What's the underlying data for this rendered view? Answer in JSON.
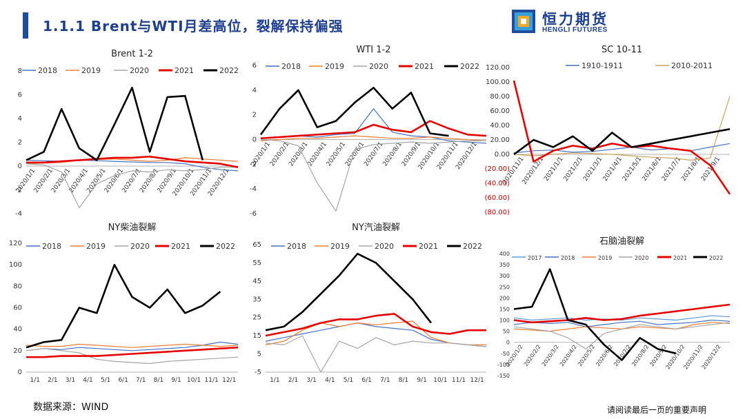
{
  "header": {
    "title": "1.1.1 Brent与WTI月差高位，裂解保持偏强",
    "logo_cn": "恒力期货",
    "logo_en": "HENGLI FUTURES"
  },
  "footer": {
    "source": "数据来源：WIND",
    "disclaimer": "请阅读最后一页的重要声明"
  },
  "colors": {
    "brand": "#1f4e9e",
    "y2017": "#5b9bd5",
    "y2018": "#4472c4",
    "y2019": "#ed7d31",
    "y2020": "#a5a5a5",
    "y2021": "#e60000",
    "y2022": "#000000"
  },
  "chart_data": [
    {
      "type": "line",
      "title": "Brent 1-2",
      "ylim": [
        -4,
        8
      ],
      "yticks": [
        "8",
        "6",
        "4",
        "2",
        "0",
        "-2",
        "-4"
      ],
      "xticks": [
        "2020/1/1",
        "2020/2/1",
        "2020/3/1",
        "2020/4/1",
        "2020/5/1",
        "2020/6/1",
        "2020/7/1",
        "2020/8/1",
        "2020/9/1",
        "2020/10/1",
        "2020/11/1",
        "2020/12/1"
      ],
      "legend": [
        "2018",
        "2019",
        "2020",
        "2021",
        "2022"
      ],
      "series": [
        {
          "name": "2018",
          "values": [
            0.5,
            0.45,
            0.4,
            0.5,
            0.45,
            0.4,
            0.35,
            0.3,
            0.3,
            0.2,
            -0.1,
            -0.3,
            -0.4
          ]
        },
        {
          "name": "2019",
          "values": [
            0.2,
            0.25,
            0.3,
            0.5,
            0.55,
            0.6,
            0.5,
            0.4,
            0.5,
            0.7,
            0.6,
            0.5,
            0.4
          ]
        },
        {
          "name": "2020",
          "values": [
            0.2,
            0.1,
            -0.5,
            -3.5,
            -1.5,
            -0.8,
            -0.4,
            -0.5,
            -0.3,
            -0.4,
            -0.3,
            -0.1,
            -0.1
          ]
        },
        {
          "name": "2021",
          "values": [
            0.3,
            0.3,
            0.4,
            0.5,
            0.6,
            0.7,
            0.7,
            0.8,
            0.6,
            0.4,
            0.3,
            0.2,
            -0.1
          ]
        },
        {
          "name": "2022",
          "values": [
            0.5,
            1.2,
            4.8,
            1.5,
            0.5,
            3.5,
            6.6,
            1.2,
            5.8,
            5.9,
            0.5
          ]
        }
      ]
    },
    {
      "type": "line",
      "title": "WTI 1-2",
      "ylim": [
        -6,
        6
      ],
      "yticks": [
        "6",
        "4",
        "2",
        "0",
        "-2",
        "-4",
        "-6"
      ],
      "xticks": [
        "2020/1/1",
        "2020/2/1",
        "2020/3/1",
        "2020/4/1",
        "2020/5/1",
        "2020/6/1",
        "2020/7/1",
        "2020/8/1",
        "2020/9/1",
        "2020/10/1",
        "2020/11/1",
        "2020/12/1"
      ],
      "legend": [
        "2018",
        "2019",
        "2020",
        "2021",
        "2022"
      ],
      "series": [
        {
          "name": "2018",
          "values": [
            0.1,
            0.2,
            0.3,
            0.2,
            0.4,
            0.5,
            2.5,
            0.6,
            0.3,
            0.2,
            -0.1,
            -0.2,
            -0.3
          ]
        },
        {
          "name": "2019",
          "values": [
            -0.1,
            0.0,
            0.1,
            0.1,
            0.2,
            0.3,
            0.2,
            0.1,
            0.1,
            0.2,
            0.1,
            0.0,
            -0.1
          ]
        },
        {
          "name": "2020",
          "values": [
            0.0,
            -0.1,
            -0.5,
            -3.5,
            -5.8,
            -0.8,
            -0.4,
            -0.3,
            -0.2,
            -0.3,
            -0.2,
            -0.1,
            -0.1
          ]
        },
        {
          "name": "2021",
          "values": [
            0.1,
            0.2,
            0.3,
            0.4,
            0.5,
            0.6,
            1.2,
            0.8,
            0.6,
            1.5,
            0.9,
            0.4,
            0.3
          ]
        },
        {
          "name": "2022",
          "values": [
            0.4,
            2.5,
            4.0,
            1.0,
            1.5,
            3.0,
            4.2,
            2.5,
            3.8,
            0.5,
            0.3
          ]
        }
      ]
    },
    {
      "type": "line",
      "title": "SC 10-11",
      "ylim": [
        -80,
        120
      ],
      "yticks": [
        "120.00",
        "100.00",
        "80.00",
        "60.00",
        "40.00",
        "20.00",
        "0.00",
        "(20.00)",
        "(40.00)",
        "(60.00)",
        "(80.00)"
      ],
      "xticks": [
        "2020/11/1",
        "2020/12/1",
        "2021/1/1",
        "2021/2/1",
        "2021/3/1",
        "2021/4/1",
        "2021/5/1",
        "2021/6/1",
        "2021/7/1",
        "2021/8/1",
        "2021/9/1"
      ],
      "legend": [
        "1910-1911",
        "2010-2011"
      ],
      "series": [
        {
          "name": "1910-1911",
          "values": [
            2,
            5,
            6,
            3,
            4,
            7,
            10,
            6,
            8,
            5,
            10,
            15
          ]
        },
        {
          "name": "2010-2011",
          "values": [
            0,
            -2,
            0,
            2,
            1,
            0,
            -2,
            -4,
            -5,
            -8,
            -5,
            80
          ]
        },
        {
          "name": "",
          "values": [
            102,
            -10,
            5,
            12,
            8,
            15,
            10,
            12,
            8,
            5,
            -15,
            -55
          ]
        },
        {
          "name": "",
          "values": [
            0,
            20,
            10,
            25,
            5,
            30,
            10,
            15,
            20,
            25,
            30,
            35
          ]
        }
      ]
    },
    {
      "type": "line",
      "title": "NY柴油裂解",
      "ylim": [
        0,
        120
      ],
      "yticks": [
        "120",
        "100",
        "80",
        "60",
        "40",
        "20",
        "0"
      ],
      "xticks": [
        "1/1",
        "2/1",
        "3/1",
        "4/1",
        "5/1",
        "6/1",
        "7/1",
        "8/1",
        "9/1",
        "10/1",
        "11/1",
        "12/1"
      ],
      "legend": [
        "2018",
        "2019",
        "2020",
        "2021",
        "2022"
      ],
      "series": [
        {
          "name": "2018",
          "values": [
            20,
            22,
            21,
            23,
            22,
            21,
            20,
            21,
            22,
            23,
            25,
            28,
            26
          ]
        },
        {
          "name": "2019",
          "values": [
            25,
            24,
            24,
            26,
            25,
            24,
            23,
            24,
            25,
            26,
            25,
            24,
            25
          ]
        },
        {
          "name": "2020",
          "values": [
            20,
            22,
            20,
            18,
            12,
            10,
            9,
            8,
            10,
            11,
            12,
            13,
            14
          ]
        },
        {
          "name": "2021",
          "values": [
            14,
            14,
            15,
            15,
            15,
            16,
            17,
            18,
            19,
            20,
            21,
            22,
            23
          ]
        },
        {
          "name": "2022",
          "values": [
            23,
            28,
            30,
            60,
            55,
            100,
            70,
            60,
            77,
            55,
            62,
            75
          ]
        }
      ]
    },
    {
      "type": "line",
      "title": "NY汽油裂解",
      "ylim": [
        -5,
        65
      ],
      "yticks": [
        "65",
        "55",
        "45",
        "35",
        "25",
        "15",
        "5",
        "-5"
      ],
      "xticks": [
        "1/1",
        "2/1",
        "3/1",
        "4/1",
        "5/1",
        "6/1",
        "7/1",
        "8/1",
        "9/1",
        "10/1",
        "11/1",
        "12/1"
      ],
      "legend": [
        "2018",
        "2019",
        "2020",
        "2021",
        "2022"
      ],
      "series": [
        {
          "name": "2018",
          "values": [
            12,
            14,
            16,
            18,
            20,
            22,
            20,
            19,
            18,
            13,
            11,
            10,
            9
          ]
        },
        {
          "name": "2019",
          "values": [
            10,
            12,
            18,
            22,
            20,
            22,
            21,
            22,
            23,
            14,
            11,
            10,
            10
          ]
        },
        {
          "name": "2020",
          "values": [
            11,
            10,
            15,
            -5,
            12,
            8,
            14,
            10,
            12,
            11,
            11,
            10,
            9
          ]
        },
        {
          "name": "2021",
          "values": [
            15,
            17,
            19,
            22,
            24,
            24,
            26,
            27,
            20,
            17,
            16,
            18,
            18
          ]
        },
        {
          "name": "2022",
          "values": [
            18,
            20,
            28,
            38,
            48,
            60,
            55,
            45,
            35,
            22
          ]
        }
      ]
    },
    {
      "type": "line",
      "title": "石脑油裂解",
      "ylim": [
        -150,
        400
      ],
      "yticks": [
        "400",
        "350",
        "300",
        "250",
        "200",
        "150",
        "100",
        "50",
        "0",
        "-50",
        "-100",
        "-150"
      ],
      "xticks": [
        "2020/1/2",
        "2020/2/2",
        "2020/3/2",
        "2020/4/2",
        "2020/5/2",
        "2020/6/2",
        "2020/7/2",
        "2020/8/2",
        "2020/9/2",
        "2020/10/2",
        "2020/11/2",
        "2020/12/2"
      ],
      "legend": [
        "2017",
        "2018",
        "2019",
        "2020",
        "2021",
        "2022"
      ],
      "series": [
        {
          "name": "2017",
          "values": [
            110,
            100,
            105,
            110,
            100,
            105,
            100,
            110,
            105,
            100,
            110,
            120,
            115
          ]
        },
        {
          "name": "2018",
          "values": [
            80,
            90,
            85,
            90,
            70,
            80,
            90,
            95,
            80,
            85,
            90,
            100,
            95
          ]
        },
        {
          "name": "2019",
          "values": [
            60,
            55,
            50,
            60,
            70,
            65,
            60,
            70,
            65,
            60,
            80,
            90,
            85
          ]
        },
        {
          "name": "2020",
          "values": [
            70,
            60,
            50,
            20,
            -30,
            40,
            60,
            80,
            70,
            60,
            70,
            80,
            90
          ]
        },
        {
          "name": "2021",
          "values": [
            100,
            90,
            95,
            100,
            110,
            100,
            105,
            120,
            130,
            140,
            150,
            160,
            170
          ]
        },
        {
          "name": "2022",
          "values": [
            150,
            160,
            330,
            100,
            80,
            -10,
            -80,
            20,
            -30,
            -50
          ]
        }
      ]
    }
  ]
}
